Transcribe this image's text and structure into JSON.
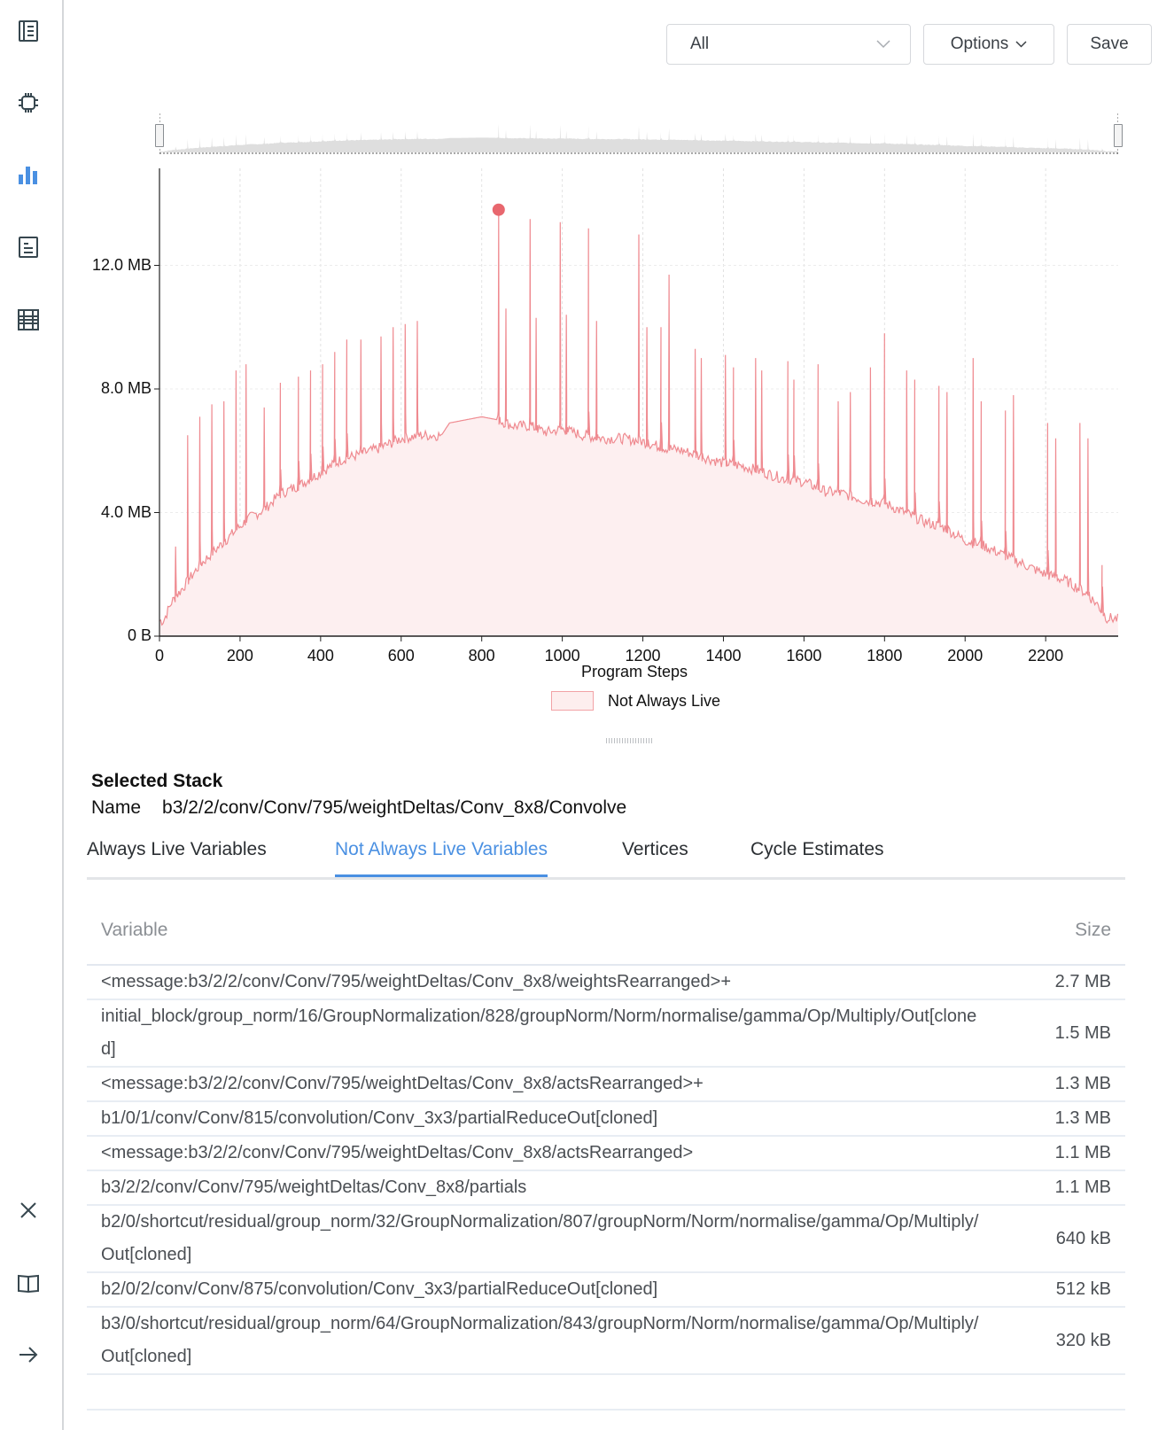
{
  "sidebar": {
    "items": [
      {
        "name": "summary",
        "icon": "notebook-icon",
        "active": false
      },
      {
        "name": "hardware",
        "icon": "chip-icon",
        "active": false
      },
      {
        "name": "memory",
        "icon": "bar-chart-icon",
        "active": true
      },
      {
        "name": "report",
        "icon": "document-icon",
        "active": false
      },
      {
        "name": "table",
        "icon": "grid-icon",
        "active": false
      }
    ],
    "bottom_items": [
      {
        "name": "close",
        "icon": "close-icon"
      },
      {
        "name": "docs",
        "icon": "book-icon"
      },
      {
        "name": "expand",
        "icon": "arrow-right-icon"
      }
    ],
    "accent": "#4a90e2"
  },
  "toolbar": {
    "select_value": "All",
    "options_label": "Options",
    "save_label": "Save"
  },
  "chart_data": {
    "type": "area",
    "title": "",
    "xlabel": "Program Steps",
    "ylabel": "",
    "x_ticks": [
      "0",
      "200",
      "400",
      "600",
      "800",
      "1000",
      "1200",
      "1400",
      "1600",
      "1800",
      "2000",
      "2200"
    ],
    "y_ticks": [
      "0 B",
      "4.0 MB",
      "8.0 MB",
      "12.0 MB"
    ],
    "xlim": [
      0,
      2380
    ],
    "ylim_mb": [
      0,
      14.5
    ],
    "grid": true,
    "legend": [
      {
        "label": "Not Always Live",
        "fill": "#fdeeee",
        "stroke": "#f2a3a6"
      }
    ],
    "legend_position": "bottom",
    "series_color": "#e8747b",
    "selected_point": {
      "step": 842,
      "value_mb": 13.8
    },
    "series": [
      {
        "name": "Not Always Live",
        "baseline_x": [
          0,
          10,
          30,
          60,
          100,
          140,
          180,
          220,
          260,
          300,
          350,
          400,
          450,
          500,
          550,
          600,
          650,
          700,
          720,
          760,
          800,
          840,
          880,
          920,
          960,
          1000,
          1050,
          1100,
          1150,
          1200,
          1250,
          1300,
          1350,
          1400,
          1450,
          1500,
          1550,
          1600,
          1650,
          1700,
          1750,
          1800,
          1850,
          1900,
          1950,
          2000,
          2050,
          2100,
          2150,
          2200,
          2250,
          2300,
          2330,
          2350,
          2380
        ],
        "baseline_mb": [
          0.5,
          0.5,
          1.1,
          1.6,
          2.3,
          2.8,
          3.3,
          3.8,
          4.1,
          4.6,
          4.9,
          5.3,
          5.7,
          5.9,
          6.1,
          6.4,
          6.5,
          6.5,
          6.9,
          7.0,
          7.1,
          7.0,
          6.8,
          6.8,
          6.6,
          6.7,
          6.5,
          6.4,
          6.4,
          6.3,
          6.1,
          6.0,
          5.8,
          5.6,
          5.5,
          5.3,
          5.1,
          5.0,
          4.7,
          4.6,
          4.4,
          4.3,
          4.0,
          3.7,
          3.5,
          3.1,
          2.9,
          2.6,
          2.3,
          2.0,
          1.8,
          1.4,
          1.0,
          0.6,
          0.55
        ],
        "spikes": [
          {
            "step": 40,
            "mb": 2.9
          },
          {
            "step": 70,
            "mb": 6.5
          },
          {
            "step": 100,
            "mb": 7.1
          },
          {
            "step": 130,
            "mb": 7.5
          },
          {
            "step": 160,
            "mb": 7.6
          },
          {
            "step": 190,
            "mb": 8.6
          },
          {
            "step": 215,
            "mb": 8.8
          },
          {
            "step": 260,
            "mb": 7.4
          },
          {
            "step": 300,
            "mb": 8.2
          },
          {
            "step": 345,
            "mb": 8.4
          },
          {
            "step": 375,
            "mb": 8.6
          },
          {
            "step": 405,
            "mb": 8.8
          },
          {
            "step": 435,
            "mb": 9.2
          },
          {
            "step": 465,
            "mb": 9.6
          },
          {
            "step": 500,
            "mb": 9.6
          },
          {
            "step": 550,
            "mb": 9.7
          },
          {
            "step": 580,
            "mb": 10.0
          },
          {
            "step": 610,
            "mb": 10.1
          },
          {
            "step": 640,
            "mb": 10.2
          },
          {
            "step": 842,
            "mb": 13.8
          },
          {
            "step": 860,
            "mb": 10.6
          },
          {
            "step": 920,
            "mb": 13.5
          },
          {
            "step": 935,
            "mb": 10.3
          },
          {
            "step": 995,
            "mb": 13.4
          },
          {
            "step": 1010,
            "mb": 10.4
          },
          {
            "step": 1065,
            "mb": 13.2
          },
          {
            "step": 1085,
            "mb": 10.2
          },
          {
            "step": 1190,
            "mb": 13.0
          },
          {
            "step": 1210,
            "mb": 10.0
          },
          {
            "step": 1245,
            "mb": 10.0
          },
          {
            "step": 1265,
            "mb": 11.7
          },
          {
            "step": 1330,
            "mb": 9.3
          },
          {
            "step": 1345,
            "mb": 9.0
          },
          {
            "step": 1405,
            "mb": 9.1
          },
          {
            "step": 1425,
            "mb": 8.7
          },
          {
            "step": 1480,
            "mb": 9.0
          },
          {
            "step": 1495,
            "mb": 8.6
          },
          {
            "step": 1560,
            "mb": 8.9
          },
          {
            "step": 1575,
            "mb": 8.3
          },
          {
            "step": 1635,
            "mb": 8.8
          },
          {
            "step": 1685,
            "mb": 7.6
          },
          {
            "step": 1715,
            "mb": 7.9
          },
          {
            "step": 1765,
            "mb": 8.7
          },
          {
            "step": 1800,
            "mb": 9.8
          },
          {
            "step": 1855,
            "mb": 8.6
          },
          {
            "step": 1875,
            "mb": 8.3
          },
          {
            "step": 1935,
            "mb": 8.1
          },
          {
            "step": 1955,
            "mb": 7.9
          },
          {
            "step": 2020,
            "mb": 9.0
          },
          {
            "step": 2040,
            "mb": 7.6
          },
          {
            "step": 2100,
            "mb": 7.3
          },
          {
            "step": 2120,
            "mb": 7.8
          },
          {
            "step": 2205,
            "mb": 6.9
          },
          {
            "step": 2225,
            "mb": 6.4
          },
          {
            "step": 2285,
            "mb": 6.9
          },
          {
            "step": 2305,
            "mb": 6.4
          },
          {
            "step": 2340,
            "mb": 2.3
          }
        ]
      }
    ]
  },
  "legend": {
    "label": "Not Always Live"
  },
  "selected_stack": {
    "title": "Selected Stack",
    "name_label": "Name",
    "name_value": "b3/2/2/conv/Conv/795/weightDeltas/Conv_8x8/Convolve"
  },
  "tabs": [
    {
      "label": "Always Live Variables",
      "active": false
    },
    {
      "label": "Not Always Live Variables",
      "active": true
    },
    {
      "label": "Vertices",
      "active": false
    },
    {
      "label": "Cycle Estimates",
      "active": false
    }
  ],
  "table": {
    "columns": [
      "Variable",
      "Size"
    ],
    "rows": [
      {
        "variable": "<message:b3/2/2/conv/Conv/795/weightDeltas/Conv_8x8/weightsRearranged>+",
        "size": "2.7 MB"
      },
      {
        "variable": "initial_block/group_norm/16/GroupNormalization/828/groupNorm/Norm/normalise/gamma/Op/Multiply/Out[cloned]",
        "size": "1.5 MB"
      },
      {
        "variable": "<message:b3/2/2/conv/Conv/795/weightDeltas/Conv_8x8/actsRearranged>+",
        "size": "1.3 MB"
      },
      {
        "variable": "b1/0/1/conv/Conv/815/convolution/Conv_3x3/partialReduceOut[cloned]",
        "size": "1.3 MB"
      },
      {
        "variable": "<message:b3/2/2/conv/Conv/795/weightDeltas/Conv_8x8/actsRearranged>",
        "size": "1.1 MB"
      },
      {
        "variable": "b3/2/2/conv/Conv/795/weightDeltas/Conv_8x8/partials",
        "size": "1.1 MB"
      },
      {
        "variable": "b2/0/shortcut/residual/group_norm/32/GroupNormalization/807/groupNorm/Norm/normalise/gamma/Op/Multiply/Out[cloned]",
        "size": "640 kB"
      },
      {
        "variable": "b2/0/2/conv/Conv/875/convolution/Conv_3x3/partialReduceOut[cloned]",
        "size": "512 kB"
      },
      {
        "variable": "b3/0/shortcut/residual/group_norm/64/GroupNormalization/843/groupNorm/Norm/normalise/gamma/Op/Multiply/Out[cloned]",
        "size": "320 kB"
      }
    ]
  }
}
